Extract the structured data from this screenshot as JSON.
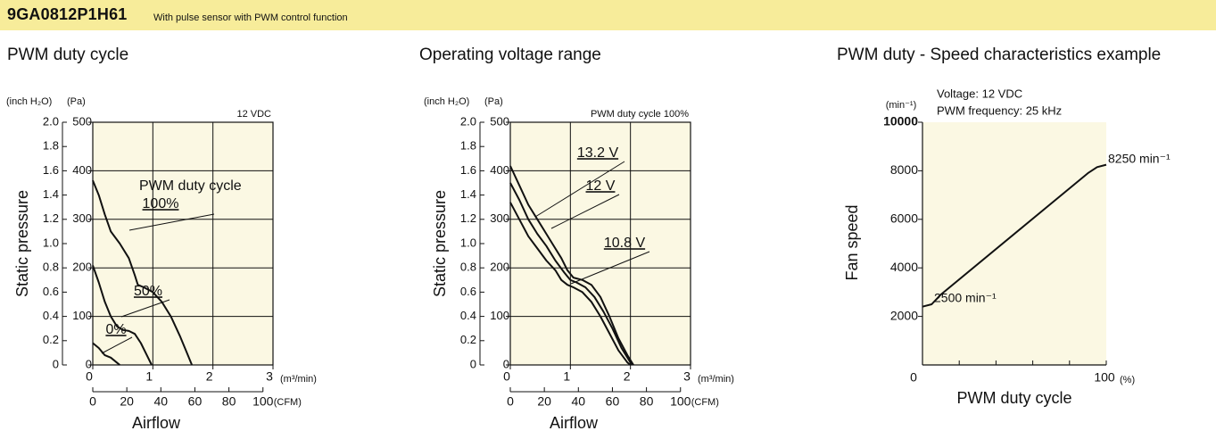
{
  "header": {
    "model": "9GA0812P1H61",
    "description": "With pulse sensor with PWM control function",
    "background": "#f7ec9a"
  },
  "colors": {
    "plot_bg": "#fbf8e3",
    "line": "#111111",
    "grid": "#222222"
  },
  "chart_data": [
    {
      "type": "line",
      "title": "PWM duty cycle",
      "ylabel": "Static pressure",
      "xlabel": "Airflow",
      "y_unit_inch": "(inch H₂O)",
      "y_unit_pa": "(Pa)",
      "x_unit_m3": "(m³/min)",
      "x_unit_cfm": "(CFM)",
      "note": "12 VDC",
      "legend_heading": "PWM duty cycle",
      "xlim": [
        0,
        3
      ],
      "ylim": [
        0,
        500
      ],
      "x_ticks_m3": [
        "0",
        "1",
        "2",
        "3"
      ],
      "x_ticks_cfm": [
        "0",
        "20",
        "40",
        "60",
        "80",
        "100"
      ],
      "y_ticks_pa": [
        "0",
        "100",
        "200",
        "300",
        "400",
        "500"
      ],
      "y_ticks_inch": [
        "0",
        "0.2",
        "0.4",
        "0.6",
        "0.8",
        "1.0",
        "1.2",
        "1.4",
        "1.6",
        "1.8",
        "2.0"
      ],
      "series": [
        {
          "name": "100%",
          "points": [
            [
              0,
              380
            ],
            [
              0.1,
              350
            ],
            [
              0.2,
              310
            ],
            [
              0.3,
              275
            ],
            [
              0.45,
              250
            ],
            [
              0.6,
              220
            ],
            [
              0.7,
              185
            ],
            [
              0.75,
              165
            ],
            [
              0.85,
              160
            ],
            [
              1.0,
              150
            ],
            [
              1.15,
              130
            ],
            [
              1.3,
              100
            ],
            [
              1.45,
              60
            ],
            [
              1.55,
              30
            ],
            [
              1.65,
              0
            ]
          ]
        },
        {
          "name": "50%",
          "points": [
            [
              0,
              205
            ],
            [
              0.1,
              170
            ],
            [
              0.2,
              130
            ],
            [
              0.3,
              100
            ],
            [
              0.4,
              80
            ],
            [
              0.5,
              72
            ],
            [
              0.6,
              70
            ],
            [
              0.7,
              64
            ],
            [
              0.8,
              45
            ],
            [
              0.9,
              20
            ],
            [
              0.98,
              0
            ]
          ]
        },
        {
          "name": "0%",
          "points": [
            [
              0,
              45
            ],
            [
              0.1,
              35
            ],
            [
              0.2,
              20
            ],
            [
              0.3,
              15
            ],
            [
              0.4,
              5
            ],
            [
              0.45,
              0
            ]
          ]
        }
      ]
    },
    {
      "type": "line",
      "title": "Operating voltage range",
      "ylabel": "Static pressure",
      "xlabel": "Airflow",
      "y_unit_inch": "(inch H₂O)",
      "y_unit_pa": "(Pa)",
      "x_unit_m3": "(m³/min)",
      "x_unit_cfm": "(CFM)",
      "note": "PWM duty cycle 100%",
      "xlim": [
        0,
        3
      ],
      "ylim": [
        0,
        500
      ],
      "x_ticks_m3": [
        "0",
        "1",
        "2",
        "3"
      ],
      "x_ticks_cfm": [
        "0",
        "20",
        "40",
        "60",
        "80",
        "100"
      ],
      "y_ticks_pa": [
        "0",
        "100",
        "200",
        "300",
        "400",
        "500"
      ],
      "y_ticks_inch": [
        "0",
        "0.2",
        "0.4",
        "0.6",
        "0.8",
        "1.0",
        "1.2",
        "1.4",
        "1.6",
        "1.8",
        "2.0"
      ],
      "series": [
        {
          "name": "13.2 V",
          "points": [
            [
              0,
              410
            ],
            [
              0.15,
              370
            ],
            [
              0.3,
              330
            ],
            [
              0.45,
              300
            ],
            [
              0.6,
              270
            ],
            [
              0.7,
              250
            ],
            [
              0.85,
              220
            ],
            [
              0.95,
              195
            ],
            [
              1.05,
              180
            ],
            [
              1.2,
              175
            ],
            [
              1.35,
              165
            ],
            [
              1.5,
              140
            ],
            [
              1.65,
              100
            ],
            [
              1.8,
              55
            ],
            [
              1.95,
              20
            ],
            [
              2.05,
              0
            ]
          ]
        },
        {
          "name": "12 V",
          "points": [
            [
              0,
              375
            ],
            [
              0.15,
              340
            ],
            [
              0.3,
              300
            ],
            [
              0.45,
              270
            ],
            [
              0.6,
              245
            ],
            [
              0.75,
              215
            ],
            [
              0.9,
              190
            ],
            [
              1.0,
              175
            ],
            [
              1.1,
              170
            ],
            [
              1.25,
              160
            ],
            [
              1.4,
              140
            ],
            [
              1.55,
              110
            ],
            [
              1.7,
              75
            ],
            [
              1.85,
              35
            ],
            [
              2.0,
              5
            ],
            [
              2.03,
              0
            ]
          ]
        },
        {
          "name": "10.8 V",
          "points": [
            [
              0,
              335
            ],
            [
              0.15,
              300
            ],
            [
              0.3,
              265
            ],
            [
              0.45,
              240
            ],
            [
              0.6,
              215
            ],
            [
              0.75,
              195
            ],
            [
              0.85,
              175
            ],
            [
              0.95,
              165
            ],
            [
              1.05,
              160
            ],
            [
              1.2,
              150
            ],
            [
              1.35,
              130
            ],
            [
              1.5,
              100
            ],
            [
              1.65,
              65
            ],
            [
              1.8,
              30
            ],
            [
              1.95,
              5
            ],
            [
              2.0,
              0
            ]
          ]
        }
      ]
    },
    {
      "type": "line",
      "title": "PWM duty - Speed characteristics example",
      "ylabel": "Fan speed",
      "xlabel": "PWM duty cycle",
      "y_unit": "(min⁻¹)",
      "x_unit": "(%)",
      "note_voltage": "Voltage: 12 VDC",
      "note_frequency": "PWM frequency: 25 kHz",
      "xlim": [
        0,
        100
      ],
      "ylim": [
        0,
        10000
      ],
      "x_ticks": [
        "0",
        "100"
      ],
      "y_ticks": [
        "2000",
        "4000",
        "6000",
        "8000",
        "10000"
      ],
      "series": [
        {
          "points": [
            [
              0,
              2400
            ],
            [
              5,
              2500
            ],
            [
              10,
              2900
            ],
            [
              90,
              7900
            ],
            [
              95,
              8150
            ],
            [
              100,
              8250
            ]
          ]
        }
      ],
      "annotations": {
        "start": "2500 min⁻¹",
        "end": "8250 min⁻¹"
      }
    }
  ]
}
